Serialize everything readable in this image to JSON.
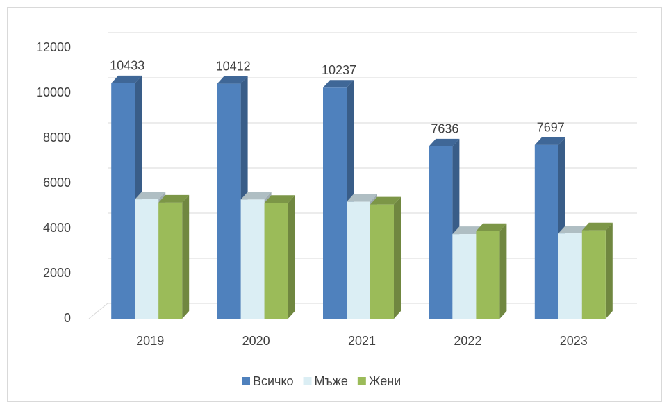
{
  "chart_data": {
    "type": "bar3d",
    "categories": [
      "2019",
      "2020",
      "2021",
      "2022",
      "2023"
    ],
    "series": [
      {
        "name": "Всичко",
        "color": "#4f81bd",
        "values": [
          10433,
          10412,
          10237,
          7636,
          7697
        ]
      },
      {
        "name": "Мъже",
        "color": "#dbeef4",
        "values": [
          5290,
          5280,
          5180,
          3750,
          3780
        ]
      },
      {
        "name": "Жени",
        "color": "#9bbb59",
        "values": [
          5143,
          5132,
          5057,
          3886,
          3917
        ]
      }
    ],
    "value_label_series": 0,
    "ylim": [
      0,
      12000
    ],
    "yticks": [
      0,
      2000,
      4000,
      6000,
      8000,
      10000,
      12000
    ],
    "grid": true,
    "legend": "bottom"
  }
}
